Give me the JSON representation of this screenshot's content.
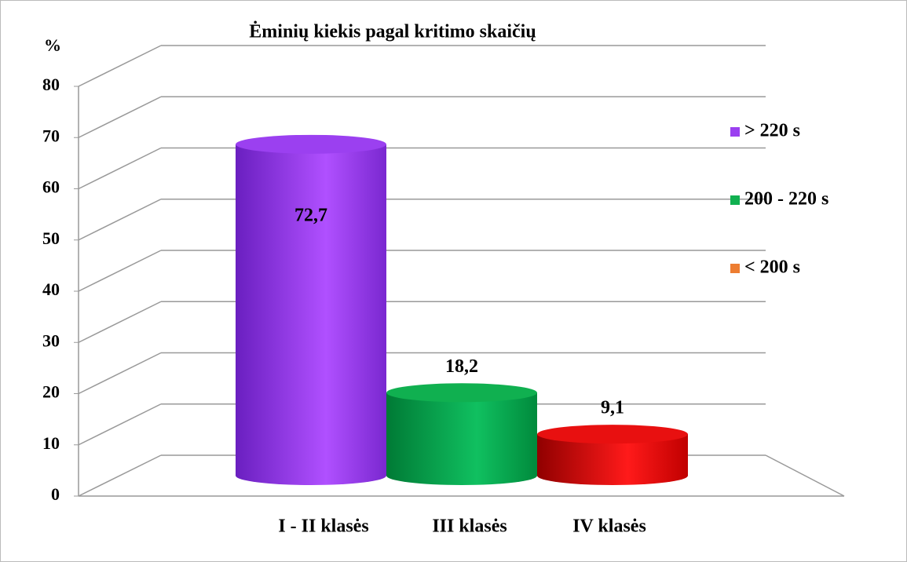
{
  "chart_data": {
    "type": "cylinder-bar",
    "title": "Ėminių kiekis pagal kritimo skaičių",
    "y_label": "%",
    "categories": [
      "I - II klasės",
      "III klasės",
      "IV klasės"
    ],
    "series": [
      {
        "name": "> 220 s",
        "color": "#9b40f0",
        "legend_color": "#9b40f0",
        "values": [
          72.7,
          null,
          null
        ],
        "value_labels": [
          "72,7",
          null,
          null
        ]
      },
      {
        "name": "200 - 220 s",
        "color": "#10b050",
        "legend_color": "#10b050",
        "values": [
          null,
          18.2,
          null
        ],
        "value_labels": [
          null,
          "18,2",
          null
        ]
      },
      {
        "name": "< 200 s",
        "color": "#e81010",
        "legend_color": "#ed7d31",
        "values": [
          null,
          null,
          9.1
        ],
        "value_labels": [
          null,
          null,
          "9,1"
        ]
      }
    ],
    "ylim": [
      0,
      80
    ],
    "yticks": [
      0,
      10,
      20,
      30,
      40,
      50,
      60,
      70,
      80
    ],
    "grid": true,
    "legend": "right"
  }
}
